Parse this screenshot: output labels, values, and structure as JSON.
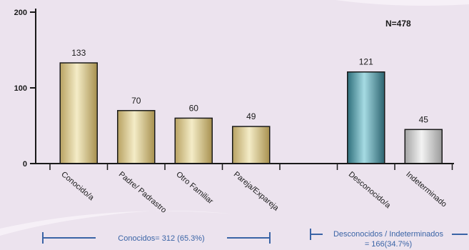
{
  "chart_data": {
    "type": "bar",
    "categories": [
      "Conocido/a",
      "Padre/ Padrastro",
      "Otro Familiar",
      "Pareja/Expareja",
      "",
      "Desconocido/a",
      "Indeterminado"
    ],
    "values": [
      133,
      70,
      60,
      49,
      null,
      121,
      45
    ],
    "value_labels": [
      "133",
      "70",
      "60",
      "49",
      "",
      "121",
      "45"
    ],
    "bar_colors": [
      "#e2d39a",
      "#e2d39a",
      "#e2d39a",
      "#e2d39a",
      "",
      "#3d8f9c",
      "#cfcfcf"
    ],
    "ylim": [
      0,
      200
    ],
    "yticks": [
      "0",
      "100",
      "200"
    ],
    "annotation": "N=478",
    "groups": [
      {
        "label": "Conocidos= 312 (65.3%)"
      },
      {
        "label_line1": "Desconocidos / Indeterminados",
        "label_line2": "= 166(34.7%)"
      }
    ],
    "colors": {
      "background": "#ece3ee",
      "axis": "#1a1a1a",
      "bracket": "#3a64a6",
      "bracket_text": "#3a64a6",
      "swoosh": "#f6f0f7"
    }
  }
}
